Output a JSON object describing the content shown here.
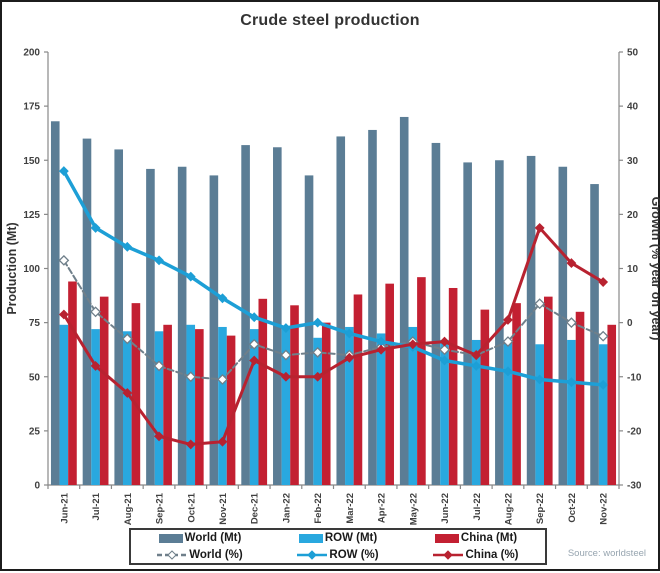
{
  "title": "Crude steel production",
  "source": "Source: worldsteel",
  "colors": {
    "world_bar": "#5b7d95",
    "row_bar": "#29a8df",
    "china_bar": "#c32032",
    "world_line": "#6f7f8a",
    "row_line": "#1d9fd6",
    "china_line": "#b82230",
    "axis": "#888888",
    "tick_text": "#404040",
    "title_text": "#333333"
  },
  "chart_data": {
    "type": "bar+line",
    "title": "Crude steel production",
    "categories": [
      "Jun-21",
      "Jul-21",
      "Aug-21",
      "Sep-21",
      "Oct-21",
      "Nov-21",
      "Dec-21",
      "Jan-22",
      "Feb-22",
      "Mar-22",
      "Apr-22",
      "May-22",
      "Jun-22",
      "Jul-22",
      "Aug-22",
      "Sep-22",
      "Oct-22",
      "Nov-22"
    ],
    "bar_series": [
      {
        "name": "World (Mt)",
        "color_key": "world_bar",
        "values": [
          168,
          160,
          155,
          146,
          147,
          143,
          157,
          156,
          143,
          161,
          164,
          170,
          158,
          149,
          150,
          152,
          147,
          139
        ]
      },
      {
        "name": "ROW (Mt)",
        "color_key": "row_bar",
        "values": [
          74,
          72,
          71,
          71,
          74,
          73,
          72,
          73,
          68,
          73,
          70,
          73,
          67,
          67,
          67,
          65,
          67,
          65
        ]
      },
      {
        "name": "China (Mt)",
        "color_key": "china_bar",
        "values": [
          94,
          87,
          84,
          74,
          72,
          69,
          86,
          83,
          75,
          88,
          93,
          96,
          91,
          81,
          84,
          87,
          80,
          74
        ]
      }
    ],
    "line_series": [
      {
        "name": "World (%)",
        "color_key": "world_line",
        "style": "dashed",
        "marker": "open",
        "values": [
          11.5,
          2,
          -3,
          -8,
          -10,
          -10.5,
          -4,
          -6,
          -5.5,
          -6,
          -4.5,
          -3.5,
          -5,
          -6,
          -3.5,
          3.5,
          0,
          -2.5
        ]
      },
      {
        "name": "ROW (%)",
        "color_key": "row_line",
        "style": "solid",
        "marker": "filled",
        "values": [
          28,
          17.5,
          14,
          11.5,
          8.5,
          4.5,
          1,
          -1,
          0,
          -2,
          -3.5,
          -4.5,
          -7,
          -8,
          -9,
          -10.5,
          -11,
          -11.5
        ]
      },
      {
        "name": "China (%)",
        "color_key": "china_line",
        "style": "solid",
        "marker": "filled",
        "values": [
          1.5,
          -8,
          -13,
          -21,
          -22.5,
          -22,
          -7,
          -10,
          -10,
          -6.5,
          -5,
          -4,
          -3.5,
          -6,
          0.5,
          17.5,
          11,
          7.5
        ]
      }
    ],
    "left_axis": {
      "label": "Production (Mt)",
      "min": 0,
      "max": 200,
      "step": 25
    },
    "right_axis": {
      "label": "Growth (% year on year)",
      "min": -30,
      "max": 50,
      "step": 10
    },
    "legend_position": "bottom",
    "grid": false
  }
}
